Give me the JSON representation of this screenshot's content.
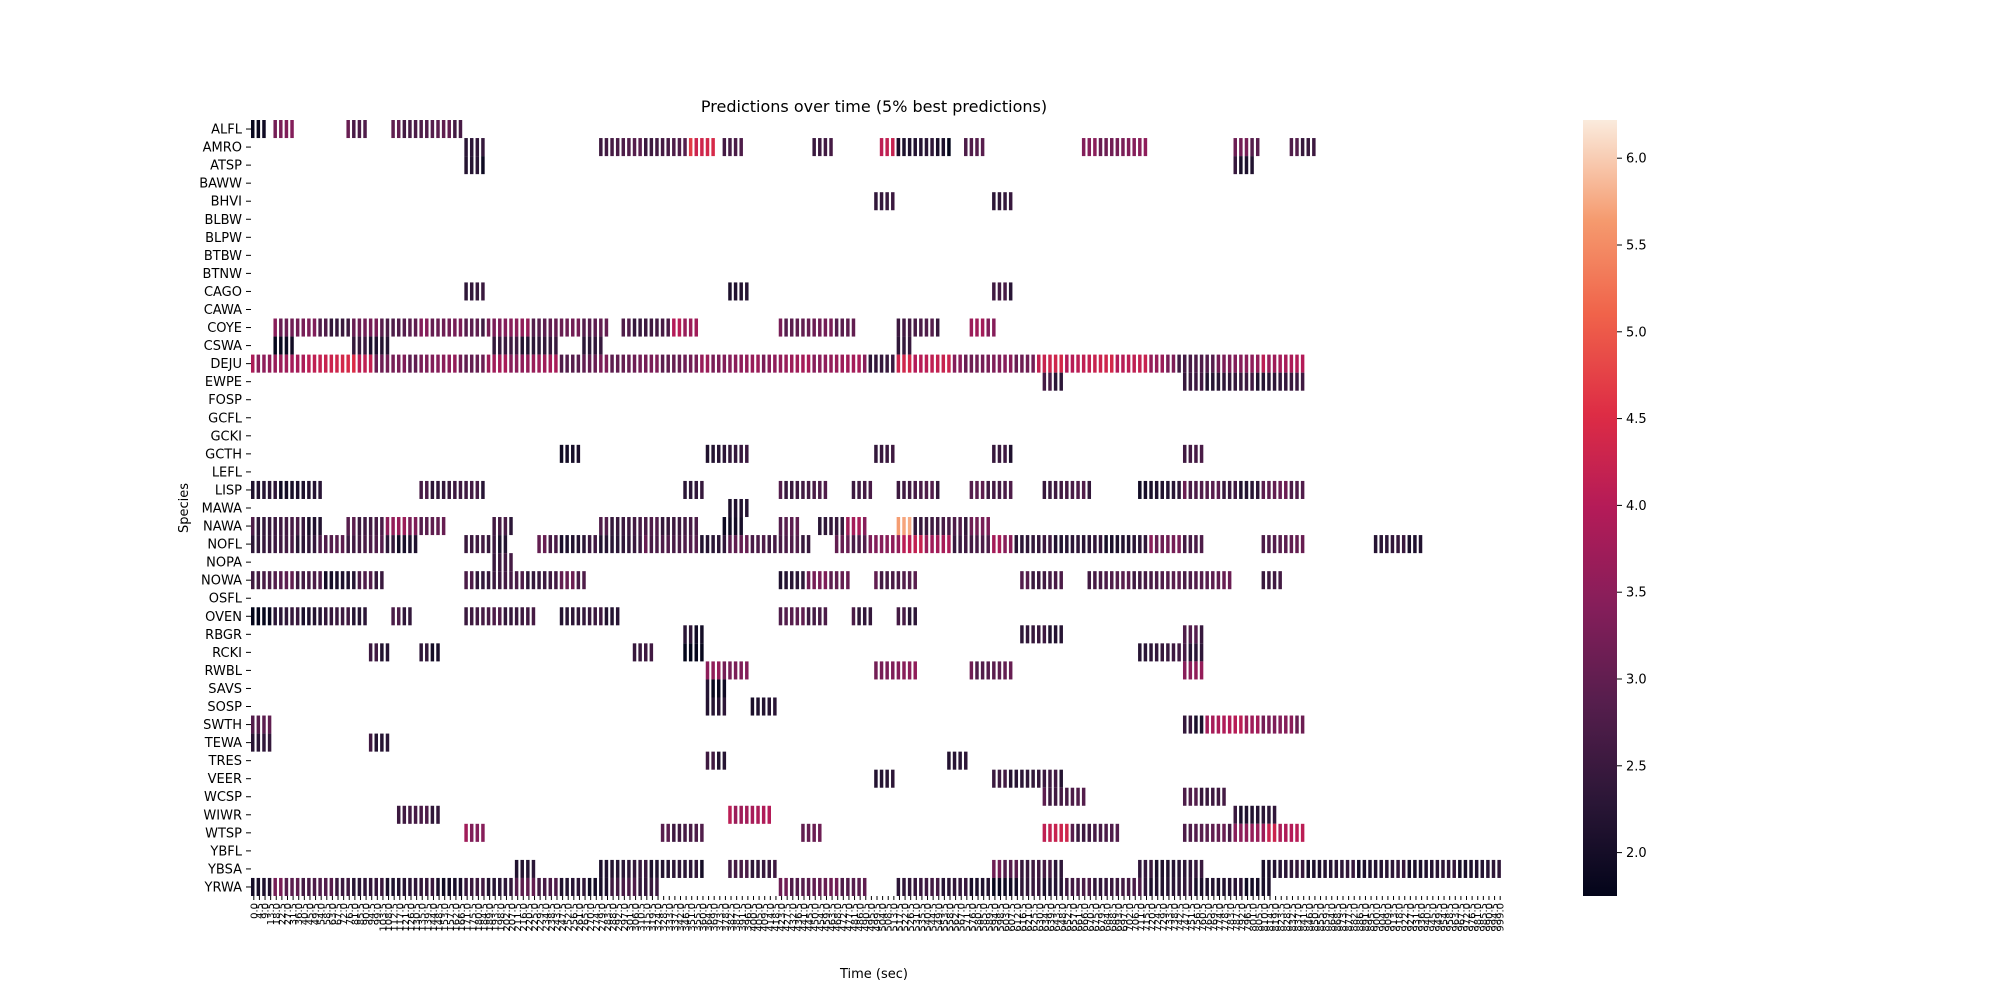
{
  "chart_data": {
    "type": "heatmap",
    "title": "Predictions over time (5% best predictions)",
    "xlabel": "Time (sec)",
    "ylabel": "Species",
    "x": {
      "start": 0.0,
      "step": 4.5,
      "count": 223
    },
    "y_categories": [
      "ALFL",
      "AMRO",
      "ATSP",
      "BAWW",
      "BHVI",
      "BLBW",
      "BLPW",
      "BTBW",
      "BTNW",
      "CAGO",
      "CAWA",
      "COYE",
      "CSWA",
      "DEJU",
      "EWPE",
      "FOSP",
      "GCFL",
      "GCKI",
      "GCTH",
      "LEFL",
      "LISP",
      "MAWA",
      "NAWA",
      "NOFL",
      "NOPA",
      "NOWA",
      "OSFL",
      "OVEN",
      "RBGR",
      "RCKI",
      "RWBL",
      "SAVS",
      "SOSP",
      "SWTH",
      "TEWA",
      "TRES",
      "VEER",
      "WCSP",
      "WIWR",
      "WTSP",
      "YBFL",
      "YBSA",
      "YRWA"
    ],
    "colorbar": {
      "min": 1.75,
      "max": 6.22,
      "ticks": [
        2.0,
        2.5,
        3.0,
        3.5,
        4.0,
        4.5,
        5.0,
        5.5,
        6.0
      ]
    },
    "series": [
      {
        "species": "ALFL",
        "segments": [
          [
            0,
            3,
            2.1
          ],
          [
            4,
            8,
            3.2
          ],
          [
            17,
            21,
            2.8
          ],
          [
            25,
            38,
            2.9
          ]
        ]
      },
      {
        "species": "AMRO",
        "segments": [
          [
            38,
            42,
            2.2
          ],
          [
            62,
            78,
            2.7
          ],
          [
            78,
            83,
            4.4
          ],
          [
            84,
            88,
            2.6
          ],
          [
            100,
            104,
            2.5
          ],
          [
            112,
            116,
            4.0
          ],
          [
            115,
            122,
            2.2
          ],
          [
            122,
            125,
            1.9
          ],
          [
            127,
            131,
            2.8
          ],
          [
            148,
            156,
            3.2
          ],
          [
            156,
            160,
            3.4
          ],
          [
            175,
            180,
            3.0
          ],
          [
            185,
            190,
            2.6
          ]
        ]
      },
      {
        "species": "ATSP",
        "segments": [
          [
            38,
            42,
            2.1
          ],
          [
            175,
            179,
            2.3
          ]
        ]
      },
      {
        "species": "BHVI",
        "segments": [
          [
            111,
            115,
            2.4
          ],
          [
            132,
            136,
            2.3
          ]
        ]
      },
      {
        "species": "CAGO",
        "segments": [
          [
            38,
            42,
            2.4
          ],
          [
            85,
            89,
            2.1
          ],
          [
            132,
            136,
            2.5
          ]
        ]
      },
      {
        "species": "COYE",
        "segments": [
          [
            4,
            12,
            3.3
          ],
          [
            12,
            18,
            2.6
          ],
          [
            18,
            24,
            3.0
          ],
          [
            24,
            30,
            2.9
          ],
          [
            30,
            38,
            3.2
          ],
          [
            38,
            42,
            2.7
          ],
          [
            42,
            50,
            3.4
          ],
          [
            50,
            64,
            3.0
          ],
          [
            66,
            75,
            2.7
          ],
          [
            75,
            80,
            3.8
          ],
          [
            94,
            108,
            3.1
          ],
          [
            115,
            123,
            2.6
          ],
          [
            128,
            133,
            3.5
          ]
        ]
      },
      {
        "species": "CSWA",
        "segments": [
          [
            4,
            8,
            1.85
          ],
          [
            18,
            25,
            2.3
          ],
          [
            43,
            55,
            2.4
          ],
          [
            59,
            63,
            2.3
          ],
          [
            115,
            118,
            2.4
          ]
        ]
      },
      {
        "species": "DEJU",
        "segments": [
          [
            0,
            10,
            3.6
          ],
          [
            10,
            22,
            4.2
          ],
          [
            22,
            30,
            3.1
          ],
          [
            30,
            38,
            3.3
          ],
          [
            38,
            42,
            3.2
          ],
          [
            42,
            55,
            3.6
          ],
          [
            55,
            62,
            2.9
          ],
          [
            62,
            80,
            3.1
          ],
          [
            80,
            92,
            3.4
          ],
          [
            92,
            110,
            3.6
          ],
          [
            110,
            115,
            2.4
          ],
          [
            115,
            125,
            4.1
          ],
          [
            125,
            140,
            3.2
          ],
          [
            140,
            160,
            4.1
          ],
          [
            160,
            165,
            3.4
          ],
          [
            165,
            172,
            2.6
          ],
          [
            172,
            180,
            3.4
          ],
          [
            180,
            188,
            3.8
          ]
        ]
      },
      {
        "species": "EWPE",
        "segments": [
          [
            141,
            145,
            2.4
          ],
          [
            166,
            188,
            2.3
          ]
        ]
      },
      {
        "species": "GCTH",
        "segments": [
          [
            55,
            59,
            2.0
          ],
          [
            81,
            89,
            2.4
          ],
          [
            111,
            115,
            2.5
          ],
          [
            132,
            136,
            2.3
          ],
          [
            166,
            170,
            2.6
          ]
        ]
      },
      {
        "species": "LISP",
        "segments": [
          [
            0,
            13,
            2.2
          ],
          [
            30,
            38,
            2.6
          ],
          [
            38,
            42,
            2.5
          ],
          [
            77,
            81,
            2.4
          ],
          [
            94,
            103,
            2.6
          ],
          [
            107,
            111,
            2.5
          ],
          [
            115,
            123,
            2.7
          ],
          [
            128,
            136,
            2.8
          ],
          [
            141,
            150,
            2.6
          ],
          [
            158,
            166,
            2.2
          ],
          [
            166,
            173,
            2.9
          ],
          [
            173,
            180,
            2.4
          ],
          [
            180,
            188,
            3.0
          ]
        ]
      },
      {
        "species": "MAWA",
        "segments": [
          [
            85,
            89,
            2.2
          ]
        ]
      },
      {
        "species": "NAWA",
        "segments": [
          [
            0,
            9,
            2.6
          ],
          [
            9,
            13,
            2.2
          ],
          [
            17,
            24,
            2.8
          ],
          [
            24,
            30,
            3.4
          ],
          [
            30,
            35,
            3.0
          ],
          [
            43,
            47,
            2.5
          ],
          [
            62,
            80,
            2.7
          ],
          [
            84,
            88,
            1.9
          ],
          [
            94,
            98,
            2.8
          ],
          [
            101,
            106,
            2.4
          ],
          [
            106,
            110,
            3.6
          ],
          [
            115,
            118,
            5.6
          ],
          [
            118,
            128,
            2.6
          ],
          [
            128,
            132,
            3.3
          ]
        ]
      },
      {
        "species": "NOFL",
        "segments": [
          [
            0,
            12,
            2.4
          ],
          [
            12,
            24,
            2.7
          ],
          [
            24,
            30,
            2.2
          ],
          [
            38,
            42,
            2.6
          ],
          [
            42,
            46,
            2.3
          ],
          [
            51,
            55,
            2.9
          ],
          [
            55,
            60,
            2.1
          ],
          [
            60,
            70,
            2.3
          ],
          [
            70,
            75,
            2.8
          ],
          [
            75,
            80,
            2.6
          ],
          [
            80,
            85,
            2.3
          ],
          [
            85,
            92,
            2.8
          ],
          [
            92,
            100,
            2.6
          ],
          [
            104,
            110,
            2.9
          ],
          [
            110,
            116,
            3.3
          ],
          [
            116,
            120,
            4.3
          ],
          [
            120,
            125,
            3.6
          ],
          [
            125,
            132,
            2.6
          ],
          [
            132,
            136,
            3.6
          ],
          [
            136,
            148,
            2.4
          ],
          [
            148,
            160,
            2.3
          ],
          [
            160,
            166,
            3.2
          ],
          [
            166,
            170,
            2.6
          ],
          [
            180,
            188,
            2.8
          ],
          [
            200,
            209,
            2.2
          ]
        ]
      },
      {
        "species": "NOPA",
        "segments": [
          [
            43,
            47,
            2.6
          ]
        ]
      },
      {
        "species": "NOWA",
        "segments": [
          [
            0,
            4,
            2.6
          ],
          [
            4,
            8,
            3.0
          ],
          [
            8,
            13,
            2.6
          ],
          [
            13,
            19,
            2.2
          ],
          [
            19,
            24,
            2.6
          ],
          [
            38,
            55,
            2.6
          ],
          [
            55,
            60,
            3.0
          ],
          [
            94,
            99,
            2.3
          ],
          [
            99,
            107,
            3.1
          ],
          [
            111,
            119,
            2.8
          ],
          [
            137,
            145,
            2.6
          ],
          [
            149,
            166,
            2.7
          ],
          [
            166,
            175,
            2.9
          ],
          [
            180,
            184,
            2.5
          ]
        ]
      },
      {
        "species": "OVEN",
        "segments": [
          [
            0,
            4,
            1.9
          ],
          [
            4,
            13,
            2.2
          ],
          [
            13,
            21,
            2.4
          ],
          [
            25,
            29,
            2.6
          ],
          [
            38,
            51,
            2.6
          ],
          [
            55,
            66,
            2.4
          ],
          [
            94,
            103,
            2.7
          ],
          [
            107,
            111,
            2.6
          ],
          [
            115,
            119,
            2.5
          ]
        ]
      },
      {
        "species": "RBGR",
        "segments": [
          [
            77,
            81,
            2.1
          ],
          [
            137,
            145,
            2.3
          ],
          [
            166,
            170,
            2.7
          ]
        ]
      },
      {
        "species": "RCKI",
        "segments": [
          [
            21,
            25,
            2.3
          ],
          [
            30,
            34,
            2.2
          ],
          [
            68,
            72,
            2.6
          ],
          [
            77,
            81,
            1.9
          ],
          [
            158,
            170,
            2.4
          ]
        ]
      },
      {
        "species": "RWBL",
        "segments": [
          [
            81,
            89,
            3.4
          ],
          [
            111,
            119,
            3.4
          ],
          [
            128,
            136,
            3.0
          ],
          [
            166,
            170,
            3.6
          ]
        ]
      },
      {
        "species": "SAVS",
        "segments": [
          [
            81,
            85,
            2.1
          ]
        ]
      },
      {
        "species": "SOSP",
        "segments": [
          [
            81,
            85,
            2.3
          ],
          [
            89,
            94,
            2.2
          ]
        ]
      },
      {
        "species": "SWTH",
        "segments": [
          [
            0,
            4,
            2.8
          ],
          [
            166,
            170,
            2.3
          ],
          [
            170,
            180,
            3.8
          ],
          [
            180,
            188,
            3.2
          ]
        ]
      },
      {
        "species": "TEWA",
        "segments": [
          [
            0,
            4,
            2.2
          ],
          [
            21,
            25,
            2.3
          ]
        ]
      },
      {
        "species": "TRES",
        "segments": [
          [
            81,
            85,
            2.4
          ],
          [
            124,
            128,
            2.1
          ]
        ]
      },
      {
        "species": "VEER",
        "segments": [
          [
            111,
            115,
            2.3
          ],
          [
            132,
            145,
            2.4
          ]
        ]
      },
      {
        "species": "WCSP",
        "segments": [
          [
            141,
            149,
            2.7
          ],
          [
            166,
            174,
            2.6
          ]
        ]
      },
      {
        "species": "WIWR",
        "segments": [
          [
            26,
            34,
            2.6
          ],
          [
            85,
            93,
            3.8
          ],
          [
            175,
            183,
            2.2
          ]
        ]
      },
      {
        "species": "WTSP",
        "segments": [
          [
            38,
            42,
            3.5
          ],
          [
            73,
            81,
            2.7
          ],
          [
            98,
            102,
            2.9
          ],
          [
            141,
            146,
            4.1
          ],
          [
            146,
            155,
            2.6
          ],
          [
            166,
            175,
            2.8
          ],
          [
            175,
            181,
            3.6
          ],
          [
            181,
            188,
            4.0
          ]
        ]
      },
      {
        "species": "YBSA",
        "segments": [
          [
            47,
            51,
            2.2
          ],
          [
            62,
            77,
            2.3
          ],
          [
            77,
            81,
            2.2
          ],
          [
            85,
            94,
            2.5
          ],
          [
            132,
            137,
            3.0
          ],
          [
            137,
            145,
            2.5
          ],
          [
            158,
            170,
            2.2
          ],
          [
            180,
            206,
            2.2
          ],
          [
            206,
            223,
            2.3
          ]
        ]
      },
      {
        "species": "YRWA",
        "segments": [
          [
            0,
            4,
            2.1
          ],
          [
            4,
            9,
            3.0
          ],
          [
            9,
            18,
            2.6
          ],
          [
            18,
            34,
            2.3
          ],
          [
            34,
            38,
            2.0
          ],
          [
            38,
            47,
            2.4
          ],
          [
            47,
            55,
            2.9
          ],
          [
            55,
            64,
            2.2
          ],
          [
            64,
            73,
            2.5
          ],
          [
            94,
            110,
            2.9
          ],
          [
            115,
            128,
            2.5
          ],
          [
            128,
            137,
            2.0
          ],
          [
            137,
            145,
            2.4
          ],
          [
            145,
            160,
            2.6
          ],
          [
            160,
            172,
            2.3
          ],
          [
            172,
            182,
            2.2
          ]
        ]
      }
    ]
  }
}
